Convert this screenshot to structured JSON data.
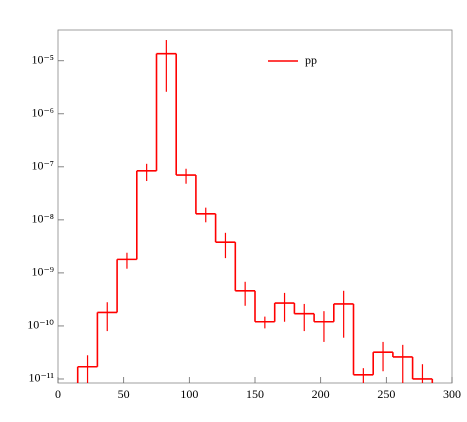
{
  "chart_data": {
    "type": "histogram",
    "bins": [
      15,
      30,
      45,
      60,
      75,
      90,
      105,
      120,
      135,
      150,
      165,
      180,
      195,
      210,
      225,
      240,
      255,
      270,
      285
    ],
    "series": [
      {
        "name": "pp",
        "color": "#ff0000",
        "values": [
          1.7e-11,
          1.8e-10,
          1.8e-09,
          8.4e-08,
          1.36e-05,
          7e-08,
          1.3e-08,
          3.8e-09,
          4.6e-10,
          1.2e-10,
          2.7e-10,
          1.7e-10,
          1.2e-10,
          2.6e-10,
          1.2e-11,
          3.2e-11,
          2.6e-11,
          1e-11
        ],
        "errors": [
          1.1e-11,
          1e-10,
          6e-10,
          3e-08,
          1.1e-05,
          2.2e-08,
          4e-09,
          1.9e-09,
          2.2e-10,
          3e-11,
          1.5e-10,
          9e-11,
          7e-11,
          2e-10,
          4e-12,
          1.8e-11,
          1.8e-11,
          9e-12
        ]
      }
    ],
    "xlim": [
      0,
      300
    ],
    "xticks": [
      0,
      50,
      100,
      150,
      200,
      250,
      300
    ],
    "ylim": [
      8.4e-12,
      3.8e-05
    ],
    "log_y": true,
    "yticks": [
      {
        "value": 1e-11,
        "label": "10⁻¹¹"
      },
      {
        "value": 1e-10,
        "label": "10⁻¹⁰"
      },
      {
        "value": 1e-09,
        "label": "10⁻⁹"
      },
      {
        "value": 1e-08,
        "label": "10⁻⁸"
      },
      {
        "value": 1e-07,
        "label": "10⁻⁷"
      },
      {
        "value": 1e-06,
        "label": "10⁻⁶"
      },
      {
        "value": 1e-05,
        "label": "10⁻⁵"
      }
    ],
    "legend": "top-right"
  }
}
